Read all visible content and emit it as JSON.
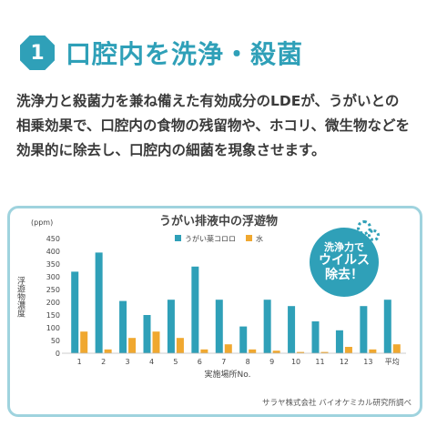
{
  "header": {
    "number": "1",
    "title": "口腔内を洗浄・殺菌"
  },
  "description": {
    "lines": [
      "洗浄力と殺菌力を兼ね備えた有効成分のLDEが、うがいとの",
      "相乗効果で、口腔内の食物の残留物や、ホコリ、微生物などを",
      "効果的に除去し、口腔内の細菌を現象させます。"
    ]
  },
  "callout": {
    "line1": "洗浄力で",
    "line2": "ウイルス",
    "line3": "除去！"
  },
  "credit": "サラヤ株式会社 バイオケミカル研究所調べ",
  "colors": {
    "accent": "#2fa0b8",
    "series_gargle": "#2fa0b8",
    "series_water": "#f0a830",
    "box_border": "#9fd3de"
  },
  "chart_data": {
    "type": "bar",
    "title": "うがい排液中の浮遊物",
    "unit": "(ppm)",
    "ylabel": "浮遊物濃度",
    "xlabel": "実施場所No.",
    "ylim": [
      0,
      450
    ],
    "yticks": [
      0,
      50,
      100,
      150,
      200,
      250,
      300,
      350,
      400,
      450
    ],
    "grid": false,
    "legend_position": "top-center",
    "categories": [
      "1",
      "2",
      "3",
      "4",
      "5",
      "6",
      "7",
      "8",
      "9",
      "10",
      "11",
      "12",
      "13",
      "平均"
    ],
    "series": [
      {
        "name": "うがい薬コロロ",
        "values": [
          320,
          395,
          205,
          150,
          210,
          340,
          210,
          105,
          210,
          185,
          125,
          90,
          185,
          210
        ]
      },
      {
        "name": "水",
        "values": [
          85,
          15,
          60,
          85,
          60,
          15,
          35,
          15,
          10,
          5,
          5,
          25,
          15,
          35
        ]
      }
    ]
  }
}
